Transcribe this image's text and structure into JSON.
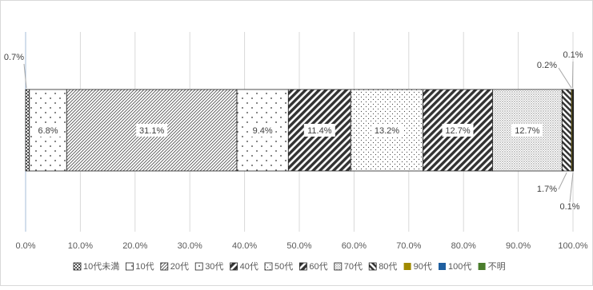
{
  "chart_data": {
    "type": "bar",
    "orientation": "horizontal",
    "stacked": true,
    "percent": true,
    "title": "",
    "xlabel": "",
    "ylabel": "",
    "xlim": [
      0,
      100
    ],
    "grid": true,
    "legend_position": "bottom",
    "x_ticks": [
      "0.0%",
      "10.0%",
      "20.0%",
      "30.0%",
      "40.0%",
      "50.0%",
      "60.0%",
      "70.0%",
      "80.0%",
      "90.0%",
      "100.0%"
    ],
    "series": [
      {
        "name": "10代未満",
        "value": 0.7,
        "label": "0.7%",
        "pattern": "checker"
      },
      {
        "name": "10代",
        "value": 6.8,
        "label": "6.8%",
        "pattern": "sparse-dots"
      },
      {
        "name": "20代",
        "value": 31.1,
        "label": "31.1%",
        "pattern": "fine-diag"
      },
      {
        "name": "30代",
        "value": 9.4,
        "label": "9.4%",
        "pattern": "sparse-dots"
      },
      {
        "name": "40代",
        "value": 11.4,
        "label": "11.4%",
        "pattern": "wide-diag"
      },
      {
        "name": "50代",
        "value": 13.2,
        "label": "13.2%",
        "pattern": "dots"
      },
      {
        "name": "60代",
        "value": 12.7,
        "label": "12.7%",
        "pattern": "wide-diag"
      },
      {
        "name": "70代",
        "value": 12.7,
        "label": "12.7%",
        "pattern": "dense-dots"
      },
      {
        "name": "80代",
        "value": 1.7,
        "label": "1.7%",
        "pattern": "diag-alt"
      },
      {
        "name": "90代",
        "value": 0.2,
        "label": "0.2%",
        "pattern": "solid",
        "color": "#a08a00"
      },
      {
        "name": "100代",
        "value": 0.1,
        "label": "0.1%",
        "pattern": "solid",
        "color": "#1f5fa0"
      },
      {
        "name": "不明",
        "value": 0.1,
        "label": "0.1%",
        "pattern": "solid",
        "color": "#4a7d2c"
      }
    ]
  }
}
